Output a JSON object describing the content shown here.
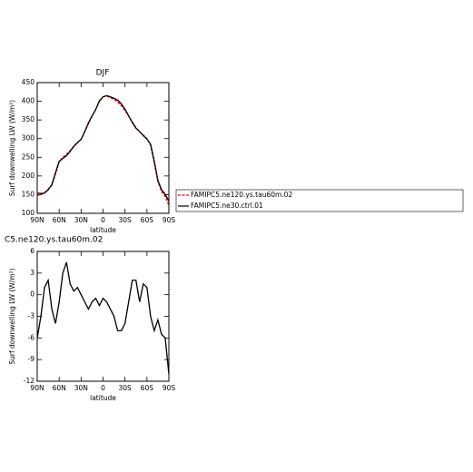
{
  "chart_data": [
    {
      "type": "line",
      "title": "DJF",
      "xlabel": "latitude",
      "ylabel": "Surf downwelling LW (W/m²)",
      "x": [
        90,
        85,
        80,
        75,
        70,
        65,
        60,
        55,
        50,
        45,
        40,
        35,
        30,
        25,
        20,
        15,
        10,
        5,
        0,
        -5,
        -10,
        -15,
        -20,
        -25,
        -30,
        -35,
        -40,
        -45,
        -50,
        -55,
        -60,
        -65,
        -70,
        -75,
        -80,
        -85,
        -90
      ],
      "series": [
        {
          "name": "FAMIPC5.ne120.ys.tau60m.02",
          "color": "#ff0000",
          "dashed": true,
          "values": [
            148,
            150,
            155,
            165,
            175,
            205,
            238,
            250,
            258,
            268,
            280,
            290,
            298,
            318,
            340,
            360,
            378,
            400,
            412,
            414,
            410,
            405,
            398,
            388,
            375,
            360,
            345,
            330,
            318,
            310,
            300,
            282,
            235,
            185,
            158,
            145,
            122
          ]
        },
        {
          "name": "FAMIPC5.ne30.ctrl.01",
          "color": "#000000",
          "dashed": false,
          "values": [
            154,
            153,
            154,
            163,
            177,
            209,
            239,
            247,
            254,
            266,
            279,
            289,
            298,
            319,
            342,
            361,
            378,
            401,
            412,
            415,
            412,
            408,
            403,
            393,
            379,
            361,
            343,
            328,
            319,
            308,
            299,
            285,
            240,
            188,
            163,
            151,
            133
          ]
        }
      ],
      "xlim": [
        90,
        -90
      ],
      "xticks": [
        {
          "value": 90,
          "label": "90N"
        },
        {
          "value": 60,
          "label": "60N"
        },
        {
          "value": 30,
          "label": "30N"
        },
        0,
        {
          "value": -30,
          "label": "30S"
        },
        {
          "value": -60,
          "label": "60S"
        },
        {
          "value": -90,
          "label": "90S"
        }
      ],
      "ylim": [
        100,
        450
      ],
      "yticks": [
        100,
        150,
        200,
        250,
        300,
        350,
        400,
        450
      ],
      "legend": "right"
    },
    {
      "type": "line",
      "title": "C5.ne120.ys.tau60m.02",
      "xlabel": "latitude",
      "ylabel": "Surf downwelling LW (W/m²)",
      "x": [
        90,
        85,
        80,
        75,
        70,
        65,
        60,
        55,
        50,
        45,
        40,
        35,
        30,
        25,
        20,
        15,
        10,
        5,
        0,
        -5,
        -10,
        -15,
        -20,
        -25,
        -30,
        -35,
        -40,
        -45,
        -50,
        -55,
        -60,
        -65,
        -70,
        -75,
        -80,
        -85,
        -90
      ],
      "series": [
        {
          "color": "#000000",
          "dashed": false,
          "values": [
            -6,
            -3,
            1,
            2,
            -2,
            -4,
            -1,
            3,
            4.5,
            1.5,
            0.5,
            1,
            0,
            -1,
            -2,
            -1,
            -0.5,
            -1.5,
            -0.5,
            -1,
            -2,
            -3,
            -5,
            -5,
            -4,
            -1,
            2,
            2,
            -1,
            1.5,
            1,
            -3,
            -5,
            -3.5,
            -5.5,
            -6,
            -11
          ]
        }
      ],
      "xlim": [
        90,
        -90
      ],
      "xticks": [
        {
          "value": 90,
          "label": "90N"
        },
        {
          "value": 60,
          "label": "60N"
        },
        {
          "value": 30,
          "label": "30N"
        },
        0,
        {
          "value": -30,
          "label": "30S"
        },
        {
          "value": -60,
          "label": "60S"
        },
        {
          "value": -90,
          "label": "90S"
        }
      ],
      "ylim": [
        -12,
        6
      ],
      "yticks": [
        -12,
        -9,
        -6,
        -3,
        0,
        3,
        6
      ]
    }
  ]
}
